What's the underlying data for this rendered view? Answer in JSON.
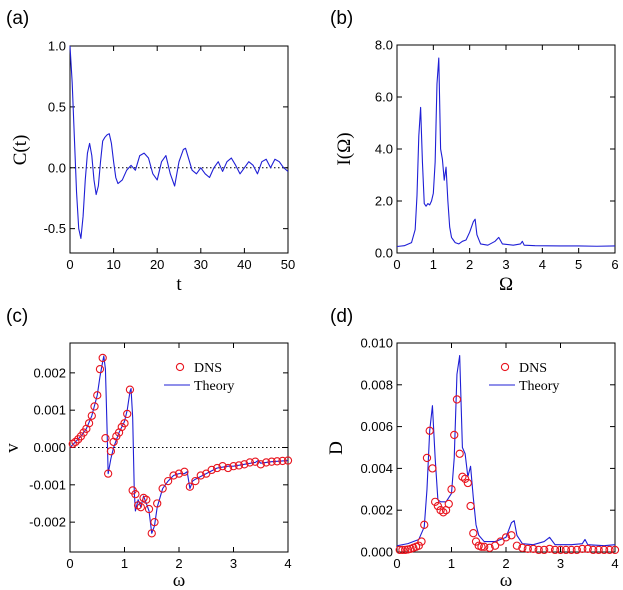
{
  "chart_data": [
    {
      "type": "line",
      "panel_label": "(a)",
      "xlabel": "t",
      "ylabel": "C(t)",
      "xlim": [
        0,
        50
      ],
      "ylim": [
        -0.7,
        1.0
      ],
      "xticks": [
        0,
        10,
        20,
        30,
        40,
        50
      ],
      "xtick_labels": [
        "0",
        "10",
        "20",
        "30",
        "40",
        "50"
      ],
      "yticks": [
        -0.5,
        0.0,
        0.5,
        1.0
      ],
      "ytick_labels": [
        "-0.5",
        "0.0",
        "0.5",
        "1.0"
      ],
      "reference_line": 0,
      "line_color": "#1f1fd6",
      "series": [
        {
          "x": [
            0,
            0.5,
            1,
            1.5,
            2,
            2.5,
            3,
            3.5,
            4,
            4.5,
            5,
            5.5,
            6,
            6.5,
            7,
            7.5,
            8,
            8.5,
            9,
            9.5,
            10,
            10.5,
            11,
            12,
            13,
            14,
            15,
            16,
            17,
            18,
            19,
            20,
            21,
            22,
            23,
            24,
            25,
            26,
            26.5,
            27,
            28,
            29,
            30,
            31,
            32,
            33,
            34,
            35,
            36,
            37,
            38,
            39,
            40,
            41,
            42,
            43,
            44,
            45,
            46,
            47,
            48,
            49,
            50
          ],
          "y": [
            1.0,
            0.7,
            0.25,
            -0.2,
            -0.5,
            -0.58,
            -0.4,
            -0.1,
            0.12,
            0.2,
            0.1,
            -0.1,
            -0.22,
            -0.15,
            0.05,
            0.22,
            0.25,
            0.27,
            0.28,
            0.2,
            0.05,
            -0.08,
            -0.13,
            -0.1,
            -0.02,
            0.02,
            -0.02,
            0.1,
            0.12,
            0.08,
            -0.05,
            -0.1,
            0.05,
            0.1,
            -0.05,
            -0.15,
            0.05,
            0.15,
            0.16,
            0.1,
            -0.02,
            -0.05,
            0.0,
            -0.05,
            -0.08,
            0.0,
            0.05,
            -0.03,
            0.05,
            0.08,
            0.02,
            -0.05,
            0.0,
            0.05,
            0.02,
            -0.05,
            0.05,
            0.07,
            0.0,
            0.07,
            0.05,
            0.0,
            -0.03
          ]
        }
      ]
    },
    {
      "type": "line",
      "panel_label": "(b)",
      "xlabel": "Ω",
      "ylabel": "I(Ω)",
      "xlim": [
        0,
        6
      ],
      "ylim": [
        0,
        8.0
      ],
      "xticks": [
        0,
        1,
        2,
        3,
        4,
        5,
        6
      ],
      "xtick_labels": [
        "0",
        "1",
        "2",
        "3",
        "4",
        "5",
        "6"
      ],
      "yticks": [
        0,
        2,
        4,
        6,
        8
      ],
      "ytick_labels": [
        "0.0",
        "2.0",
        "4.0",
        "6.0",
        "8.0"
      ],
      "line_color": "#1f1fd6",
      "series": [
        {
          "x": [
            0,
            0.2,
            0.4,
            0.5,
            0.55,
            0.6,
            0.65,
            0.7,
            0.75,
            0.8,
            0.85,
            0.9,
            0.95,
            1.0,
            1.05,
            1.1,
            1.15,
            1.2,
            1.25,
            1.3,
            1.35,
            1.4,
            1.45,
            1.5,
            1.55,
            1.6,
            1.7,
            1.8,
            1.9,
            2.0,
            2.1,
            2.15,
            2.2,
            2.3,
            2.5,
            2.7,
            2.8,
            2.9,
            3.2,
            3.4,
            3.45,
            3.5,
            3.8,
            4.5,
            5.0,
            5.5,
            6.0
          ],
          "y": [
            0.25,
            0.28,
            0.4,
            0.9,
            2.2,
            4.5,
            5.6,
            3.5,
            1.9,
            1.8,
            1.9,
            1.85,
            2.0,
            2.3,
            3.5,
            6.5,
            7.5,
            4.0,
            3.6,
            2.8,
            3.3,
            2.0,
            1.0,
            0.6,
            0.5,
            0.4,
            0.35,
            0.45,
            0.5,
            0.8,
            1.2,
            1.3,
            0.7,
            0.35,
            0.3,
            0.45,
            0.6,
            0.35,
            0.3,
            0.35,
            0.45,
            0.3,
            0.28,
            0.27,
            0.27,
            0.26,
            0.27
          ]
        }
      ]
    },
    {
      "type": "scatter",
      "panel_label": "(c)",
      "xlabel": "ω",
      "ylabel": "v",
      "xlim": [
        0,
        4
      ],
      "ylim": [
        -0.0028,
        0.0028
      ],
      "xticks": [
        0,
        1,
        2,
        3,
        4
      ],
      "xtick_labels": [
        "0",
        "1",
        "2",
        "3",
        "4"
      ],
      "yticks": [
        -0.002,
        -0.001,
        0.0,
        0.001,
        0.002
      ],
      "ytick_labels": [
        "-0.002",
        "-0.001",
        "0.000",
        "0.001",
        "0.002"
      ],
      "reference_line": 0,
      "legend": {
        "position": "top-right",
        "entries": [
          "DNS",
          "Theory"
        ]
      },
      "line_color": "#1f1fd6",
      "marker_color": "#e8141e",
      "series": [
        {
          "name": "DNS",
          "style": "circles",
          "x": [
            0.05,
            0.1,
            0.15,
            0.2,
            0.25,
            0.3,
            0.35,
            0.4,
            0.45,
            0.5,
            0.55,
            0.6,
            0.65,
            0.7,
            0.75,
            0.8,
            0.85,
            0.9,
            0.95,
            1.0,
            1.05,
            1.1,
            1.15,
            1.2,
            1.25,
            1.3,
            1.35,
            1.4,
            1.45,
            1.5,
            1.55,
            1.6,
            1.7,
            1.8,
            1.9,
            2.0,
            2.1,
            2.2,
            2.3,
            2.4,
            2.5,
            2.6,
            2.7,
            2.8,
            2.9,
            3.0,
            3.1,
            3.2,
            3.3,
            3.4,
            3.5,
            3.6,
            3.7,
            3.8,
            3.9,
            4.0
          ],
          "y": [
            0.0001,
            0.00015,
            0.00022,
            0.0003,
            0.0004,
            0.0005,
            0.00065,
            0.00085,
            0.0011,
            0.0014,
            0.0021,
            0.0024,
            0.00025,
            -0.0007,
            -0.0001,
            0.00015,
            0.0003,
            0.0004,
            0.00055,
            0.00065,
            0.0009,
            0.00155,
            -0.00115,
            -0.00125,
            -0.00155,
            -0.0016,
            -0.00135,
            -0.0014,
            -0.00165,
            -0.0023,
            -0.002,
            -0.0015,
            -0.0011,
            -0.0009,
            -0.00075,
            -0.0007,
            -0.00065,
            -0.00105,
            -0.0009,
            -0.00075,
            -0.0007,
            -0.0006,
            -0.00055,
            -0.0005,
            -0.00055,
            -0.0005,
            -0.00048,
            -0.00045,
            -0.0004,
            -0.00038,
            -0.00045,
            -0.0004,
            -0.00038,
            -0.00037,
            -0.00036,
            -0.00035
          ]
        },
        {
          "name": "Theory",
          "style": "line",
          "x": [
            0,
            0.1,
            0.2,
            0.3,
            0.4,
            0.5,
            0.55,
            0.6,
            0.62,
            0.65,
            0.68,
            0.7,
            0.75,
            0.8,
            0.9,
            1.0,
            1.05,
            1.1,
            1.12,
            1.15,
            1.18,
            1.2,
            1.25,
            1.3,
            1.35,
            1.4,
            1.45,
            1.5,
            1.55,
            1.6,
            1.7,
            1.8,
            1.9,
            2.0,
            2.1,
            2.15,
            2.2,
            2.25,
            2.3,
            2.5,
            2.7,
            2.9,
            3.0,
            3.2,
            3.4,
            3.45,
            3.5,
            3.7,
            4.0
          ],
          "y": [
            0.0,
            0.00015,
            0.0003,
            0.0005,
            0.00085,
            0.0014,
            0.0019,
            0.0023,
            0.00245,
            0.0021,
            0.0005,
            -0.0007,
            -0.0003,
            0.0,
            0.0004,
            0.0007,
            0.001,
            0.0015,
            0.00158,
            0.0008,
            -0.0012,
            -0.0017,
            -0.0014,
            -0.0016,
            -0.0013,
            -0.0015,
            -0.0017,
            -0.0023,
            -0.0021,
            -0.0016,
            -0.0011,
            -0.0009,
            -0.00075,
            -0.0007,
            -0.0007,
            -0.00065,
            -0.0011,
            -0.0009,
            -0.00085,
            -0.0007,
            -0.00055,
            -0.0005,
            -0.0005,
            -0.00045,
            -0.0004,
            -0.00035,
            -0.00042,
            -0.00038,
            -0.00035
          ]
        }
      ]
    },
    {
      "type": "scatter",
      "panel_label": "(d)",
      "xlabel": "ω",
      "ylabel": "D",
      "xlim": [
        0,
        4
      ],
      "ylim": [
        0,
        0.01
      ],
      "xticks": [
        0,
        1,
        2,
        3,
        4
      ],
      "xtick_labels": [
        "0",
        "1",
        "2",
        "3",
        "4"
      ],
      "yticks": [
        0,
        0.002,
        0.004,
        0.006,
        0.008,
        0.01
      ],
      "ytick_labels": [
        "0.000",
        "0.002",
        "0.004",
        "0.006",
        "0.008",
        "0.010"
      ],
      "legend": {
        "position": "top-right",
        "entries": [
          "DNS",
          "Theory"
        ]
      },
      "line_color": "#1f1fd6",
      "marker_color": "#e8141e",
      "series": [
        {
          "name": "DNS",
          "style": "circles",
          "x": [
            0.05,
            0.1,
            0.15,
            0.2,
            0.25,
            0.3,
            0.35,
            0.4,
            0.45,
            0.5,
            0.55,
            0.6,
            0.65,
            0.7,
            0.75,
            0.8,
            0.85,
            0.9,
            0.95,
            1.0,
            1.05,
            1.1,
            1.15,
            1.2,
            1.25,
            1.3,
            1.35,
            1.4,
            1.45,
            1.5,
            1.55,
            1.6,
            1.7,
            1.8,
            1.9,
            2.0,
            2.1,
            2.2,
            2.3,
            2.4,
            2.5,
            2.6,
            2.7,
            2.8,
            2.9,
            3.0,
            3.1,
            3.2,
            3.3,
            3.4,
            3.5,
            3.6,
            3.7,
            3.8,
            3.9,
            4.0
          ],
          "y": [
            0.0001,
            0.0001,
            0.0001,
            0.00012,
            0.00015,
            0.0002,
            0.00025,
            0.0003,
            0.0005,
            0.0013,
            0.0045,
            0.0058,
            0.004,
            0.0024,
            0.0022,
            0.002,
            0.0019,
            0.002,
            0.0023,
            0.003,
            0.0056,
            0.0073,
            0.0047,
            0.0036,
            0.0035,
            0.0033,
            0.0022,
            0.0009,
            0.0005,
            0.0003,
            0.00025,
            0.00025,
            0.0002,
            0.0003,
            0.0005,
            0.0007,
            0.0008,
            0.0003,
            0.0002,
            0.00015,
            0.00015,
            0.0001,
            0.0001,
            0.00015,
            0.0001,
            0.0001,
            0.0001,
            0.0001,
            0.0001,
            0.00015,
            0.00015,
            0.0001,
            0.0001,
            0.0001,
            0.0001,
            0.0001
          ]
        },
        {
          "name": "Theory",
          "style": "line",
          "x": [
            0,
            0.2,
            0.4,
            0.5,
            0.55,
            0.6,
            0.65,
            0.7,
            0.75,
            0.8,
            0.9,
            1.0,
            1.05,
            1.1,
            1.15,
            1.2,
            1.25,
            1.3,
            1.35,
            1.4,
            1.45,
            1.5,
            1.6,
            1.8,
            2.0,
            2.1,
            2.15,
            2.2,
            2.3,
            2.5,
            2.7,
            2.8,
            2.9,
            3.2,
            3.4,
            3.45,
            3.5,
            3.8,
            4.0
          ],
          "y": [
            0.0003,
            0.0004,
            0.0006,
            0.0012,
            0.003,
            0.0058,
            0.007,
            0.0045,
            0.0025,
            0.0024,
            0.0024,
            0.0028,
            0.0045,
            0.0085,
            0.0094,
            0.005,
            0.0047,
            0.0036,
            0.0041,
            0.0026,
            0.0013,
            0.0008,
            0.0005,
            0.0005,
            0.0007,
            0.0014,
            0.0015,
            0.0008,
            0.0004,
            0.00035,
            0.0005,
            0.0007,
            0.00035,
            0.00035,
            0.0004,
            0.0006,
            0.00035,
            0.0003,
            0.00035
          ]
        }
      ]
    }
  ]
}
